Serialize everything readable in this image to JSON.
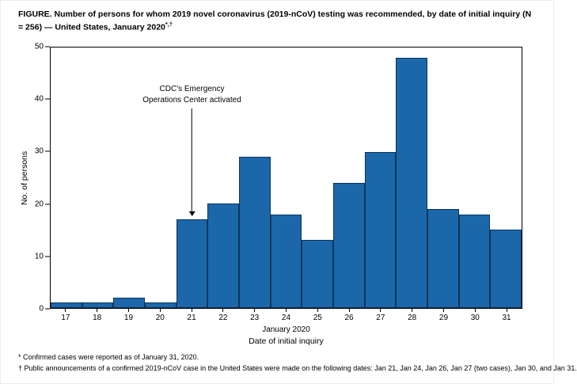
{
  "figure": {
    "title_main": "FIGURE. Number of persons for whom 2019 novel coronavirus (2019-nCoV) testing was recommended, by date of initial inquiry (N = 256) — United States, January 2020",
    "title_marker": "*,†",
    "footnotes": [
      "* Confirmed cases were reported as of January 31, 2020.",
      "† Public announcements of a confirmed 2019-nCoV case in the United States were made on the following dates: Jan 21, Jan 24, Jan 26, Jan 27 (two cases), Jan 30, and Jan 31."
    ]
  },
  "chart_data": {
    "type": "bar",
    "categories": [
      "17",
      "18",
      "19",
      "20",
      "21",
      "22",
      "23",
      "24",
      "25",
      "26",
      "27",
      "28",
      "29",
      "30",
      "31"
    ],
    "values": [
      1,
      1,
      2,
      1,
      17,
      20,
      29,
      18,
      13,
      24,
      30,
      48,
      19,
      18,
      15
    ],
    "total_n": 256,
    "title": "",
    "xlabel": "Date of initial inquiry",
    "x_sublabel": "January 2020",
    "ylabel": "No. of persons",
    "ylim": [
      0,
      50
    ],
    "yticks": [
      0,
      10,
      20,
      30,
      40,
      50
    ],
    "grid": false,
    "legend": "none",
    "bar_color": "#1b67aa",
    "bar_border_color": "#0c355c",
    "annotation": {
      "lines": [
        "CDC's Emergency",
        "Operations Center activated"
      ],
      "target_category": "21"
    }
  }
}
